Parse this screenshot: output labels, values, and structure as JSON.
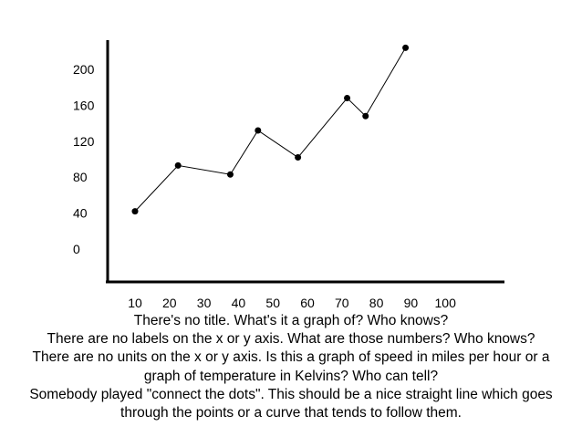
{
  "chart_data": {
    "type": "line",
    "title": "",
    "xlabel": "",
    "ylabel": "",
    "x_ticks": [
      "10",
      "20",
      "30",
      "40",
      "50",
      "60",
      "70",
      "80",
      "90",
      "100"
    ],
    "y_ticks": [
      "0",
      "40",
      "80",
      "120",
      "160",
      "200"
    ],
    "xlim": [
      10,
      100
    ],
    "ylim": [
      0,
      200
    ],
    "grid": false,
    "series": [
      {
        "x": [
          10,
          24,
          41,
          50,
          63,
          79,
          85,
          98
        ],
        "y": [
          42,
          93,
          83,
          132,
          102,
          168,
          148,
          224
        ]
      }
    ]
  },
  "caption": {
    "lines": [
      "There's no title.  What's it a graph of?  Who knows?",
      "There are no labels on the x or y axis.  What are those numbers?  Who knows?",
      "There are no units on the x or y axis.  Is this a graph of speed in miles per hour or a",
      "graph of temperature in Kelvins?  Who can tell?",
      "Somebody played \"connect the dots\".  This should be a nice straight line which goes",
      "through the points or a curve that tends to follow them."
    ]
  }
}
